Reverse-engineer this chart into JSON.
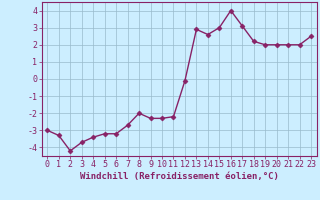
{
  "x": [
    0,
    1,
    2,
    3,
    4,
    5,
    6,
    7,
    8,
    9,
    10,
    11,
    12,
    13,
    14,
    15,
    16,
    17,
    18,
    19,
    20,
    21,
    22,
    23
  ],
  "y": [
    -3.0,
    -3.3,
    -4.2,
    -3.7,
    -3.4,
    -3.2,
    -3.2,
    -2.7,
    -2.0,
    -2.3,
    -2.3,
    -2.2,
    -0.1,
    2.9,
    2.6,
    3.0,
    4.0,
    3.1,
    2.2,
    2.0,
    2.0,
    2.0,
    2.0,
    2.5
  ],
  "line_color": "#882266",
  "marker": "D",
  "marker_size": 2.5,
  "bg_color": "#cceeff",
  "grid_color": "#99bbcc",
  "xlabel": "Windchill (Refroidissement éolien,°C)",
  "xlabel_fontsize": 6.5,
  "ylim": [
    -4.5,
    4.5
  ],
  "xlim": [
    -0.5,
    23.5
  ],
  "yticks": [
    -4,
    -3,
    -2,
    -1,
    0,
    1,
    2,
    3,
    4
  ],
  "xticks": [
    0,
    1,
    2,
    3,
    4,
    5,
    6,
    7,
    8,
    9,
    10,
    11,
    12,
    13,
    14,
    15,
    16,
    17,
    18,
    19,
    20,
    21,
    22,
    23
  ],
  "tick_fontsize": 6.0,
  "line_width": 1.0,
  "spine_color": "#882266"
}
